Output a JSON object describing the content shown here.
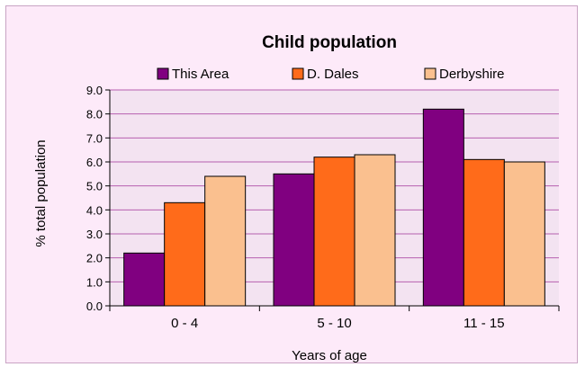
{
  "chart_data": {
    "type": "bar",
    "title": "Child population",
    "xlabel": "Years of age",
    "ylabel": "% total population",
    "categories": [
      "0 - 4",
      "5 - 10",
      "11 - 15"
    ],
    "series": [
      {
        "name": "This Area",
        "color": "#800080",
        "values": [
          2.2,
          5.5,
          8.2
        ]
      },
      {
        "name": "D. Dales",
        "color": "#ff6b1a",
        "values": [
          4.3,
          6.2,
          6.1
        ]
      },
      {
        "name": "Derbyshire",
        "color": "#fac08f",
        "values": [
          5.4,
          6.3,
          6.0
        ]
      }
    ],
    "ylim": [
      0,
      9
    ],
    "yticks": [
      "0.0",
      "1.0",
      "2.0",
      "3.0",
      "4.0",
      "5.0",
      "6.0",
      "7.0",
      "8.0",
      "9.0"
    ],
    "grid": true,
    "legend_position": "top",
    "plot_background": "#f3e3f1",
    "gridline_color": "#b65fb0",
    "frame_background": "#fdeaf9"
  }
}
